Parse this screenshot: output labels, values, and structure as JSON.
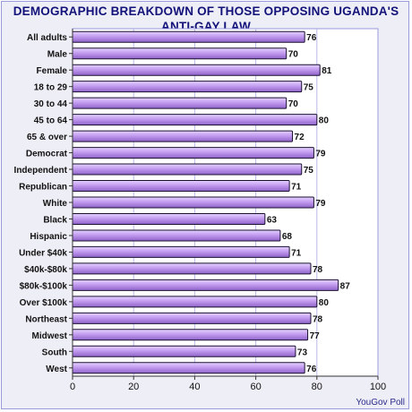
{
  "chart_data": {
    "type": "bar",
    "orientation": "horizontal",
    "title_line1": "DEMOGRAPHIC BREAKDOWN OF THOSE OPPOSING UGANDA'S",
    "title_line2": "ANTI-GAY LAW",
    "categories": [
      "All adults",
      "Male",
      "Female",
      "18 to 29",
      "30 to 44",
      "45 to 64",
      "65 & over",
      "Democrat",
      "Independent",
      "Republican",
      "White",
      "Black",
      "Hispanic",
      "Under $40k",
      "$40k-$80k",
      "$80k-$100k",
      "Over $100k",
      "Northeast",
      "Midwest",
      "South",
      "West"
    ],
    "values": [
      76,
      70,
      81,
      75,
      70,
      80,
      72,
      79,
      75,
      71,
      79,
      63,
      68,
      71,
      78,
      87,
      80,
      78,
      77,
      73,
      76
    ],
    "xlim": [
      0,
      100
    ],
    "xticks": [
      0,
      20,
      40,
      60,
      80,
      100
    ],
    "grid": "vertical",
    "bar_color": "#c9a8ef",
    "bar_edge": "#1a1030",
    "source": "YouGov Poll"
  }
}
